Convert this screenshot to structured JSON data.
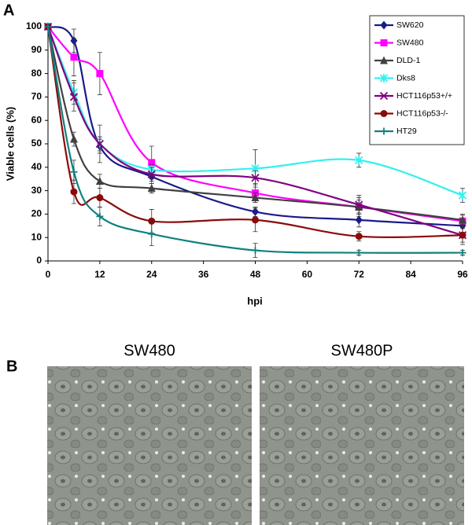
{
  "panel_a_label": "A",
  "chart_data": {
    "type": "line",
    "y_label": "Viable cells (%)",
    "x_label": "hpi",
    "x": [
      0,
      6,
      12,
      24,
      48,
      72,
      96
    ],
    "xlim": [
      0,
      96
    ],
    "xticks": [
      0,
      12,
      24,
      36,
      48,
      60,
      72,
      84,
      96
    ],
    "ylim": [
      0,
      100
    ],
    "yticks": [
      0,
      10,
      20,
      30,
      40,
      50,
      60,
      70,
      80,
      90,
      100
    ],
    "grid": false,
    "smooth": true,
    "legend": "upper right",
    "series": [
      {
        "name": "SW620",
        "color": "#1a1a8c",
        "marker": "diamond",
        "values": [
          100,
          94,
          49,
          36,
          21,
          17.5,
          15
        ],
        "errors": [
          0,
          5,
          3,
          3,
          2,
          3,
          3
        ]
      },
      {
        "name": "SW480",
        "color": "#ff00ff",
        "marker": "square",
        "values": [
          100,
          87,
          80,
          42,
          29,
          23,
          17
        ],
        "errors": [
          0,
          8,
          9,
          7,
          4,
          4,
          3
        ]
      },
      {
        "name": "DLD-1",
        "color": "#404040",
        "marker": "triangle",
        "values": [
          100,
          52,
          34,
          31,
          27,
          23,
          17.5
        ],
        "errors": [
          0,
          3,
          3,
          2,
          2,
          3,
          2
        ]
      },
      {
        "name": "Dks8",
        "color": "#33f0f0",
        "marker": "star",
        "values": [
          100,
          72,
          50,
          39,
          39.5,
          43,
          28
        ],
        "errors": [
          0,
          5,
          3,
          2,
          8,
          3,
          3
        ]
      },
      {
        "name": "HCT116p53+/+",
        "color": "#800080",
        "marker": "x",
        "values": [
          100,
          70,
          50,
          37,
          35.5,
          24,
          11
        ],
        "errors": [
          0,
          6,
          8,
          3,
          3,
          4,
          4
        ]
      },
      {
        "name": "HCT116p53-/-",
        "color": "#8b0a0a",
        "marker": "circle",
        "values": [
          100,
          29.5,
          27,
          17,
          17.5,
          10.5,
          11
        ],
        "errors": [
          0,
          5,
          4,
          5,
          5,
          2,
          3
        ]
      },
      {
        "name": "HT29",
        "color": "#108080",
        "marker": "plus",
        "values": [
          100,
          38,
          19,
          11.5,
          4.5,
          3.5,
          3.5
        ],
        "errors": [
          0,
          5,
          4,
          5,
          3,
          1,
          1
        ]
      }
    ]
  },
  "panel_b": {
    "label": "B",
    "images": [
      {
        "title": "SW480"
      },
      {
        "title": "SW480P"
      }
    ]
  }
}
